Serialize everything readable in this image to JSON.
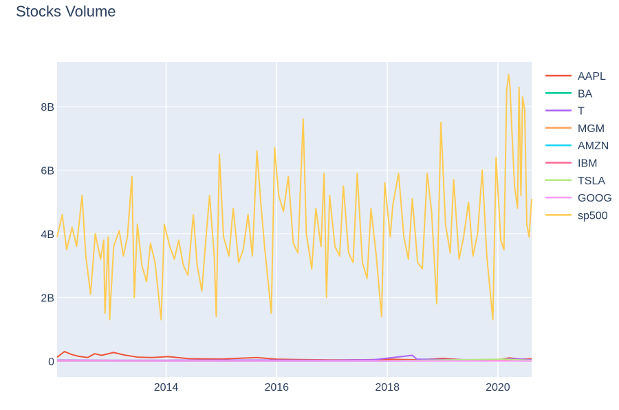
{
  "chart_data": {
    "type": "line",
    "title": "Stocks Volume",
    "xlabel": "",
    "ylabel": "",
    "xlim": [
      "2012-01-12",
      "2020-08-11"
    ],
    "ylim": [
      -500000000,
      9400000000
    ],
    "grid": true,
    "legend": "right",
    "x_ticks": [
      {
        "label": "2014",
        "date": "2014-01-01"
      },
      {
        "label": "2016",
        "date": "2016-01-01"
      },
      {
        "label": "2018",
        "date": "2018-01-01"
      },
      {
        "label": "2020",
        "date": "2020-01-01"
      }
    ],
    "y_ticks": [
      {
        "label": "0",
        "value": 0
      },
      {
        "label": "2B",
        "value": 2000000000
      },
      {
        "label": "4B",
        "value": 4000000000
      },
      {
        "label": "6B",
        "value": 6000000000
      },
      {
        "label": "8B",
        "value": 8000000000
      }
    ],
    "series": [
      {
        "name": "AAPL",
        "color": "#EF553B",
        "points": [
          [
            "2012-01-12",
            120000000
          ],
          [
            "2012-03-01",
            300000000
          ],
          [
            "2012-04-15",
            210000000
          ],
          [
            "2012-06-01",
            150000000
          ],
          [
            "2012-08-01",
            110000000
          ],
          [
            "2012-09-15",
            230000000
          ],
          [
            "2012-11-01",
            180000000
          ],
          [
            "2013-01-20",
            270000000
          ],
          [
            "2013-04-01",
            190000000
          ],
          [
            "2013-07-01",
            120000000
          ],
          [
            "2013-10-01",
            110000000
          ],
          [
            "2014-01-15",
            140000000
          ],
          [
            "2014-06-01",
            75000000
          ],
          [
            "2015-01-01",
            65000000
          ],
          [
            "2015-08-24",
            110000000
          ],
          [
            "2016-01-01",
            60000000
          ],
          [
            "2016-06-01",
            45000000
          ],
          [
            "2017-01-01",
            35000000
          ],
          [
            "2017-08-01",
            40000000
          ],
          [
            "2018-02-01",
            55000000
          ],
          [
            "2018-08-01",
            35000000
          ],
          [
            "2019-01-03",
            85000000
          ],
          [
            "2019-06-01",
            35000000
          ],
          [
            "2020-01-01",
            40000000
          ],
          [
            "2020-03-16",
            100000000
          ],
          [
            "2020-06-01",
            60000000
          ],
          [
            "2020-08-11",
            70000000
          ]
        ]
      },
      {
        "name": "BA",
        "color": "#00CC96",
        "points": [
          [
            "2012-01-12",
            5000000
          ],
          [
            "2014-01-01",
            5000000
          ],
          [
            "2016-01-01",
            4000000
          ],
          [
            "2018-01-01",
            5000000
          ],
          [
            "2019-03-13",
            40000000
          ],
          [
            "2020-01-01",
            10000000
          ],
          [
            "2020-03-20",
            60000000
          ],
          [
            "2020-05-15",
            45000000
          ],
          [
            "2020-08-11",
            25000000
          ]
        ]
      },
      {
        "name": "T",
        "color": "#AB63FA",
        "points": [
          [
            "2012-01-12",
            30000000
          ],
          [
            "2013-01-01",
            25000000
          ],
          [
            "2014-01-01",
            25000000
          ],
          [
            "2015-01-01",
            30000000
          ],
          [
            "2016-01-01",
            30000000
          ],
          [
            "2017-01-01",
            25000000
          ],
          [
            "2017-10-01",
            40000000
          ],
          [
            "2018-06-15",
            180000000
          ],
          [
            "2018-07-15",
            60000000
          ],
          [
            "2019-01-01",
            50000000
          ],
          [
            "2020-01-01",
            35000000
          ],
          [
            "2020-03-20",
            80000000
          ],
          [
            "2020-08-11",
            40000000
          ]
        ]
      },
      {
        "name": "MGM",
        "color": "#FFA15A",
        "points": [
          [
            "2012-01-12",
            15000000
          ],
          [
            "2014-01-01",
            10000000
          ],
          [
            "2016-01-01",
            8000000
          ],
          [
            "2018-01-01",
            8000000
          ],
          [
            "2020-03-20",
            40000000
          ],
          [
            "2020-08-11",
            15000000
          ]
        ]
      },
      {
        "name": "AMZN",
        "color": "#19D3F3",
        "points": [
          [
            "2012-01-12",
            5000000
          ],
          [
            "2015-01-01",
            4000000
          ],
          [
            "2018-01-01",
            5000000
          ],
          [
            "2020-03-20",
            8000000
          ],
          [
            "2020-08-11",
            5000000
          ]
        ]
      },
      {
        "name": "IBM",
        "color": "#FF6692",
        "points": [
          [
            "2012-01-12",
            4000000
          ],
          [
            "2015-01-01",
            5000000
          ],
          [
            "2018-01-01",
            5000000
          ],
          [
            "2020-03-20",
            10000000
          ],
          [
            "2020-08-11",
            5000000
          ]
        ]
      },
      {
        "name": "TSLA",
        "color": "#B6E880",
        "points": [
          [
            "2012-01-12",
            1000000
          ],
          [
            "2014-01-01",
            8000000
          ],
          [
            "2016-01-01",
            6000000
          ],
          [
            "2018-01-01",
            8000000
          ],
          [
            "2020-02-04",
            60000000
          ],
          [
            "2020-08-11",
            20000000
          ]
        ]
      },
      {
        "name": "GOOG",
        "color": "#FF97FF",
        "points": [
          [
            "2012-01-12",
            5000000
          ],
          [
            "2015-01-01",
            2000000
          ],
          [
            "2018-01-01",
            2000000
          ],
          [
            "2020-08-11",
            2000000
          ]
        ]
      },
      {
        "name": "sp500",
        "color": "#FECB52",
        "points": [
          [
            "2012-01-12",
            3900000000
          ],
          [
            "2012-02-15",
            4600000000
          ],
          [
            "2012-03-15",
            3500000000
          ],
          [
            "2012-04-20",
            4200000000
          ],
          [
            "2012-05-20",
            3600000000
          ],
          [
            "2012-06-25",
            5200000000
          ],
          [
            "2012-07-20",
            3300000000
          ],
          [
            "2012-08-20",
            2100000000
          ],
          [
            "2012-09-20",
            4000000000
          ],
          [
            "2012-10-25",
            3200000000
          ],
          [
            "2012-11-15",
            3800000000
          ],
          [
            "2012-11-23",
            1500000000
          ],
          [
            "2012-12-15",
            3900000000
          ],
          [
            "2012-12-24",
            1300000000
          ],
          [
            "2013-01-20",
            3600000000
          ],
          [
            "2013-02-25",
            4100000000
          ],
          [
            "2013-03-25",
            3300000000
          ],
          [
            "2013-04-20",
            3900000000
          ],
          [
            "2013-05-20",
            5800000000
          ],
          [
            "2013-06-05",
            2000000000
          ],
          [
            "2013-06-25",
            4300000000
          ],
          [
            "2013-07-25",
            3000000000
          ],
          [
            "2013-08-25",
            2500000000
          ],
          [
            "2013-09-20",
            3700000000
          ],
          [
            "2013-10-20",
            3100000000
          ],
          [
            "2013-11-29",
            1300000000
          ],
          [
            "2013-12-20",
            4300000000
          ],
          [
            "2014-01-25",
            3600000000
          ],
          [
            "2014-02-25",
            3200000000
          ],
          [
            "2014-03-25",
            3800000000
          ],
          [
            "2014-04-25",
            3000000000
          ],
          [
            "2014-05-25",
            2700000000
          ],
          [
            "2014-06-30",
            4600000000
          ],
          [
            "2014-07-25",
            3000000000
          ],
          [
            "2014-08-25",
            2200000000
          ],
          [
            "2014-09-20",
            3800000000
          ],
          [
            "2014-10-15",
            5200000000
          ],
          [
            "2014-11-15",
            3300000000
          ],
          [
            "2014-11-28",
            1400000000
          ],
          [
            "2014-12-19",
            6500000000
          ],
          [
            "2015-01-15",
            3900000000
          ],
          [
            "2015-02-20",
            3300000000
          ],
          [
            "2015-03-20",
            4800000000
          ],
          [
            "2015-04-25",
            3100000000
          ],
          [
            "2015-05-25",
            3500000000
          ],
          [
            "2015-06-26",
            4600000000
          ],
          [
            "2015-07-25",
            3300000000
          ],
          [
            "2015-08-24",
            6600000000
          ],
          [
            "2015-09-18",
            5000000000
          ],
          [
            "2015-10-15",
            3500000000
          ],
          [
            "2015-11-27",
            1500000000
          ],
          [
            "2015-12-18",
            6700000000
          ],
          [
            "2016-01-15",
            5200000000
          ],
          [
            "2016-02-15",
            4700000000
          ],
          [
            "2016-03-18",
            5800000000
          ],
          [
            "2016-04-20",
            3700000000
          ],
          [
            "2016-05-20",
            3400000000
          ],
          [
            "2016-06-24",
            7600000000
          ],
          [
            "2016-07-15",
            4000000000
          ],
          [
            "2016-08-20",
            2900000000
          ],
          [
            "2016-09-16",
            4800000000
          ],
          [
            "2016-10-20",
            3600000000
          ],
          [
            "2016-11-09",
            5900000000
          ],
          [
            "2016-11-25",
            2000000000
          ],
          [
            "2016-12-16",
            5200000000
          ],
          [
            "2017-01-20",
            3600000000
          ],
          [
            "2017-02-20",
            3300000000
          ],
          [
            "2017-03-17",
            5500000000
          ],
          [
            "2017-04-20",
            3400000000
          ],
          [
            "2017-05-20",
            3100000000
          ],
          [
            "2017-06-16",
            5900000000
          ],
          [
            "2017-07-20",
            3100000000
          ],
          [
            "2017-08-20",
            2600000000
          ],
          [
            "2017-09-15",
            4800000000
          ],
          [
            "2017-10-20",
            3300000000
          ],
          [
            "2017-11-24",
            1400000000
          ],
          [
            "2017-12-15",
            5600000000
          ],
          [
            "2018-01-20",
            3900000000
          ],
          [
            "2018-02-06",
            4900000000
          ],
          [
            "2018-03-16",
            5900000000
          ],
          [
            "2018-04-20",
            3900000000
          ],
          [
            "2018-05-20",
            3200000000
          ],
          [
            "2018-06-15",
            5100000000
          ],
          [
            "2018-07-20",
            3100000000
          ],
          [
            "2018-08-20",
            2900000000
          ],
          [
            "2018-09-21",
            5900000000
          ],
          [
            "2018-10-20",
            4700000000
          ],
          [
            "2018-11-23",
            1800000000
          ],
          [
            "2018-12-21",
            7500000000
          ],
          [
            "2019-01-20",
            4300000000
          ],
          [
            "2019-02-20",
            3400000000
          ],
          [
            "2019-03-15",
            5700000000
          ],
          [
            "2019-04-20",
            3200000000
          ],
          [
            "2019-05-20",
            3900000000
          ],
          [
            "2019-06-21",
            5000000000
          ],
          [
            "2019-07-20",
            3300000000
          ],
          [
            "2019-08-20",
            4000000000
          ],
          [
            "2019-09-20",
            6000000000
          ],
          [
            "2019-10-20",
            3300000000
          ],
          [
            "2019-11-29",
            1300000000
          ],
          [
            "2019-12-20",
            6400000000
          ],
          [
            "2020-01-20",
            3800000000
          ],
          [
            "2020-02-10",
            3500000000
          ],
          [
            "2020-02-28",
            8500000000
          ],
          [
            "2020-03-12",
            9000000000
          ],
          [
            "2020-03-20",
            8700000000
          ],
          [
            "2020-04-05",
            7000000000
          ],
          [
            "2020-04-20",
            5500000000
          ],
          [
            "2020-05-10",
            4800000000
          ],
          [
            "2020-05-20",
            8600000000
          ],
          [
            "2020-06-01",
            5200000000
          ],
          [
            "2020-06-12",
            8300000000
          ],
          [
            "2020-06-26",
            7900000000
          ],
          [
            "2020-07-10",
            4300000000
          ],
          [
            "2020-07-25",
            3900000000
          ],
          [
            "2020-08-11",
            5100000000
          ]
        ]
      }
    ]
  }
}
